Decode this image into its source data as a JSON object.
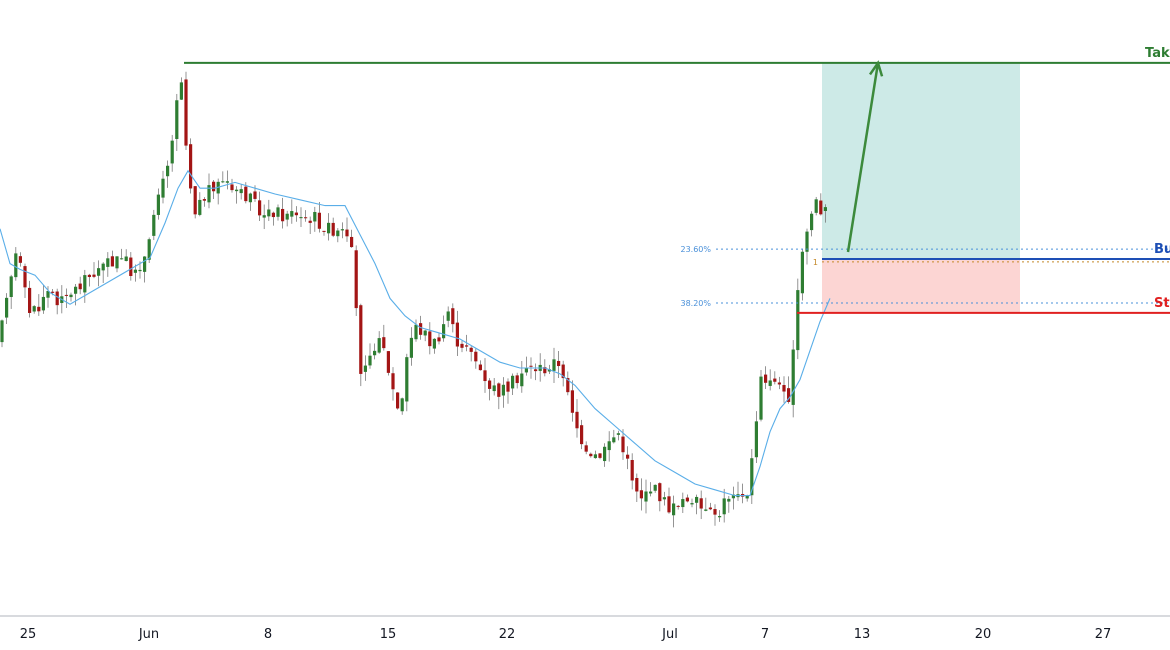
{
  "chart_data": {
    "type": "candlestick",
    "x_ticks": [
      "25",
      "Jun",
      "8",
      "15",
      "22",
      "Jul",
      "7",
      "13",
      "20",
      "27"
    ],
    "ylim": [
      0,
      100
    ],
    "colors": {
      "up": "#2e7d32",
      "down": "#a31515",
      "ma": "#5aaee8",
      "take_profit": "#2e7d32",
      "buy": "#1e4fb5",
      "stop": "#e02020",
      "profit_zone": "#cdeae7",
      "loss_zone": "#fcd5d3",
      "fib": "#4a90d9",
      "fib_1": "#c58a2a",
      "arrow": "#3c8a3c"
    },
    "levels": {
      "take_profit": {
        "label": "Tak",
        "value": 92.6
      },
      "buy": {
        "label": "Bu",
        "value": 58.8
      },
      "stop": {
        "label": "St",
        "value": 49.5
      },
      "fib_236": {
        "label": "23.60%",
        "value": 60.5
      },
      "fib_1": {
        "label": "1",
        "value": 58.3
      },
      "fib_382": {
        "label": "38.20%",
        "value": 51.2
      }
    },
    "price_path": [
      [
        0,
        44
      ],
      [
        5,
        52
      ],
      [
        10,
        55
      ],
      [
        15,
        61
      ],
      [
        20,
        58
      ],
      [
        25,
        53
      ],
      [
        30,
        50
      ],
      [
        40,
        51
      ],
      [
        50,
        54
      ],
      [
        60,
        51
      ],
      [
        70,
        53
      ],
      [
        80,
        54
      ],
      [
        90,
        56
      ],
      [
        100,
        57
      ],
      [
        110,
        58
      ],
      [
        120,
        60
      ],
      [
        130,
        57
      ],
      [
        140,
        56
      ],
      [
        150,
        64
      ],
      [
        160,
        70
      ],
      [
        170,
        76
      ],
      [
        175,
        84
      ],
      [
        182,
        89
      ],
      [
        188,
        73
      ],
      [
        195,
        66
      ],
      [
        205,
        70
      ],
      [
        215,
        71
      ],
      [
        225,
        73
      ],
      [
        235,
        71
      ],
      [
        245,
        70
      ],
      [
        255,
        68
      ],
      [
        265,
        66
      ],
      [
        275,
        67
      ],
      [
        285,
        66
      ],
      [
        295,
        67
      ],
      [
        305,
        66
      ],
      [
        315,
        66
      ],
      [
        325,
        64
      ],
      [
        335,
        64
      ],
      [
        345,
        65
      ],
      [
        350,
        62
      ],
      [
        355,
        55
      ],
      [
        360,
        38
      ],
      [
        368,
        40
      ],
      [
        376,
        45
      ],
      [
        384,
        43
      ],
      [
        392,
        37
      ],
      [
        400,
        32
      ],
      [
        408,
        44
      ],
      [
        416,
        47
      ],
      [
        424,
        46
      ],
      [
        432,
        44
      ],
      [
        440,
        46
      ],
      [
        448,
        50
      ],
      [
        456,
        45
      ],
      [
        464,
        44
      ],
      [
        472,
        42
      ],
      [
        480,
        40
      ],
      [
        490,
        37
      ],
      [
        500,
        36
      ],
      [
        510,
        37
      ],
      [
        520,
        39
      ],
      [
        530,
        40
      ],
      [
        545,
        40
      ],
      [
        560,
        41
      ],
      [
        565,
        38
      ],
      [
        570,
        33
      ],
      [
        578,
        29
      ],
      [
        588,
        26
      ],
      [
        598,
        25
      ],
      [
        608,
        27
      ],
      [
        618,
        29
      ],
      [
        626,
        25
      ],
      [
        634,
        19
      ],
      [
        642,
        17
      ],
      [
        650,
        20
      ],
      [
        660,
        18
      ],
      [
        670,
        16
      ],
      [
        680,
        16
      ],
      [
        690,
        18
      ],
      [
        700,
        16
      ],
      [
        710,
        17
      ],
      [
        716,
        14
      ],
      [
        724,
        17
      ],
      [
        732,
        17
      ],
      [
        740,
        18
      ],
      [
        748,
        19
      ],
      [
        754,
        27
      ],
      [
        760,
        39
      ],
      [
        766,
        38
      ],
      [
        772,
        37
      ],
      [
        778,
        39
      ],
      [
        784,
        35
      ],
      [
        790,
        33
      ],
      [
        796,
        50
      ],
      [
        800,
        59
      ],
      [
        806,
        63
      ],
      [
        812,
        67
      ],
      [
        818,
        70
      ],
      [
        822,
        66
      ],
      [
        826,
        69
      ],
      [
        830,
        71
      ]
    ],
    "ma_path": [
      [
        0,
        64
      ],
      [
        10,
        58
      ],
      [
        20,
        57
      ],
      [
        35,
        56
      ],
      [
        50,
        53
      ],
      [
        70,
        51
      ],
      [
        90,
        53
      ],
      [
        110,
        55
      ],
      [
        130,
        57
      ],
      [
        150,
        59
      ],
      [
        165,
        65
      ],
      [
        178,
        71
      ],
      [
        188,
        74
      ],
      [
        200,
        71
      ],
      [
        215,
        71
      ],
      [
        235,
        72
      ],
      [
        255,
        71
      ],
      [
        275,
        70
      ],
      [
        300,
        69
      ],
      [
        325,
        68
      ],
      [
        345,
        68
      ],
      [
        360,
        63
      ],
      [
        375,
        58
      ],
      [
        390,
        52
      ],
      [
        405,
        49
      ],
      [
        420,
        47
      ],
      [
        440,
        46
      ],
      [
        460,
        45
      ],
      [
        480,
        43
      ],
      [
        500,
        41
      ],
      [
        520,
        40
      ],
      [
        545,
        40
      ],
      [
        560,
        39
      ],
      [
        575,
        37
      ],
      [
        595,
        33
      ],
      [
        615,
        30
      ],
      [
        635,
        27
      ],
      [
        655,
        24
      ],
      [
        675,
        22
      ],
      [
        695,
        20
      ],
      [
        715,
        19
      ],
      [
        735,
        18
      ],
      [
        750,
        18
      ],
      [
        760,
        23
      ],
      [
        770,
        29
      ],
      [
        780,
        33
      ],
      [
        790,
        35
      ],
      [
        800,
        38
      ],
      [
        810,
        43
      ],
      [
        820,
        48
      ],
      [
        830,
        52
      ]
    ],
    "annotations": {
      "profit_zone": {
        "from_x": 822,
        "to_x": 1020,
        "top": 92.6,
        "bottom": 58.8
      },
      "loss_zone": {
        "from_x": 822,
        "to_x": 1020,
        "top": 58.8,
        "bottom": 49.5
      },
      "arrow": {
        "from": [
          848,
          60.0
        ],
        "to": [
          878,
          92.6
        ]
      }
    }
  }
}
